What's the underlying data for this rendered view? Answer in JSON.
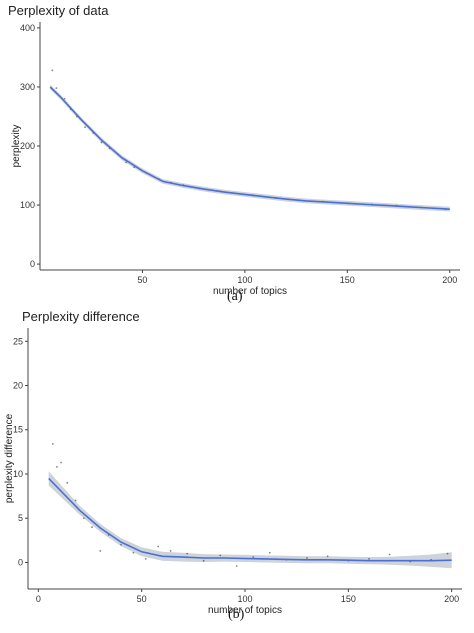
{
  "chart_data": [
    {
      "type": "scatter",
      "title": "Perplexity of data",
      "caption": "(a)",
      "xlabel": "number of topics",
      "ylabel": "perplexity",
      "xlim": [
        0,
        205
      ],
      "ylim": [
        -10,
        410
      ],
      "xticks": [
        50,
        100,
        150,
        200
      ],
      "yticks": [
        0,
        100,
        200,
        300,
        400
      ],
      "grid": false,
      "colors": {
        "line": "#4a6fd8",
        "band": "#bcc4cc",
        "points": "#333333"
      },
      "smooth": {
        "x": [
          5,
          10,
          20,
          30,
          40,
          50,
          60,
          70,
          80,
          90,
          100,
          110,
          120,
          130,
          140,
          150,
          160,
          170,
          180,
          190,
          200
        ],
        "y": [
          300,
          283,
          245,
          210,
          180,
          158,
          140,
          133,
          127,
          122,
          118,
          114,
          110,
          107,
          105,
          103,
          101,
          99,
          97,
          95,
          93
        ],
        "band": 4
      },
      "points": {
        "x": [
          6,
          8,
          12,
          15,
          18,
          22,
          26,
          30,
          34,
          38,
          42,
          46,
          52,
          58,
          64,
          70,
          78,
          86,
          95,
          104,
          115,
          126,
          138,
          150,
          162,
          174,
          186,
          198
        ],
        "y": [
          328,
          298,
          280,
          262,
          250,
          232,
          222,
          206,
          196,
          186,
          172,
          164,
          154,
          144,
          138,
          134,
          128,
          124,
          120,
          116,
          112,
          108,
          106,
          103,
          101,
          99,
          96,
          93
        ]
      }
    },
    {
      "type": "scatter",
      "title": "Perplexity difference",
      "caption": "(b)",
      "xlabel": "number of topics",
      "ylabel": "perplexity difference",
      "xlim": [
        -5,
        205
      ],
      "ylim": [
        -3,
        26.5
      ],
      "xticks": [
        0,
        50,
        100,
        150,
        200
      ],
      "yticks": [
        0,
        5,
        10,
        15,
        20,
        25
      ],
      "grid": false,
      "colors": {
        "line": "#4a6fd8",
        "band": "#bcc4cc",
        "points": "#333333"
      },
      "smooth": {
        "x": [
          5,
          10,
          20,
          30,
          40,
          50,
          60,
          70,
          80,
          90,
          100,
          110,
          120,
          130,
          140,
          150,
          160,
          170,
          180,
          190,
          200
        ],
        "y": [
          9.5,
          8.3,
          5.9,
          3.9,
          2.3,
          1.2,
          0.7,
          0.6,
          0.5,
          0.5,
          0.45,
          0.4,
          0.35,
          0.3,
          0.3,
          0.25,
          0.2,
          0.2,
          0.2,
          0.2,
          0.25
        ],
        "band": [
          0.8,
          0.7,
          0.5,
          0.45,
          0.45,
          0.5,
          0.5,
          0.5,
          0.45,
          0.4,
          0.4,
          0.4,
          0.4,
          0.4,
          0.4,
          0.4,
          0.4,
          0.45,
          0.55,
          0.7,
          0.9
        ]
      },
      "points": {
        "x": [
          7,
          9,
          11,
          14,
          18,
          22,
          26,
          30,
          34,
          40,
          46,
          52,
          58,
          64,
          72,
          80,
          88,
          96,
          104,
          112,
          120,
          130,
          140,
          150,
          160,
          170,
          180,
          190,
          198
        ],
        "y": [
          13.4,
          10.8,
          11.3,
          9.0,
          7.0,
          5.0,
          4.0,
          1.3,
          3.1,
          2.0,
          1.1,
          0.4,
          1.8,
          1.3,
          1.0,
          0.2,
          0.8,
          -0.4,
          0.6,
          1.1,
          0.3,
          0.5,
          0.7,
          0.2,
          0.4,
          0.9,
          0.1,
          0.3,
          1.0
        ]
      }
    }
  ]
}
